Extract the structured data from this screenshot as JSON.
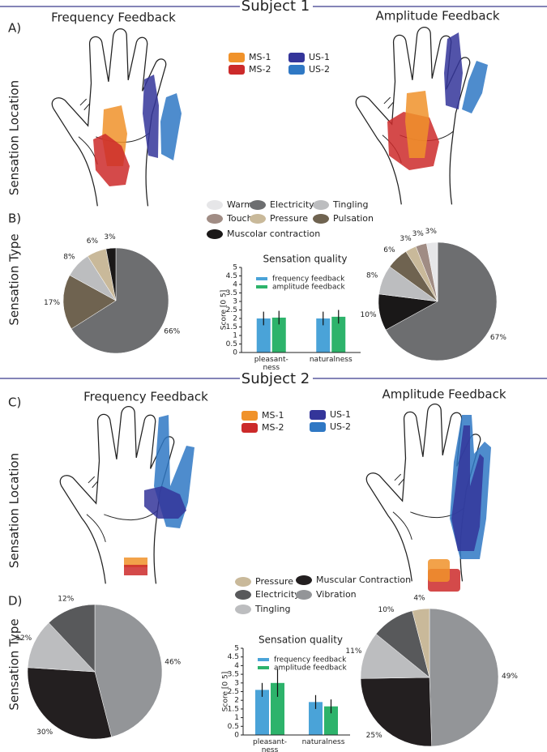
{
  "figure": {
    "subject1": {
      "title": "Subject 1",
      "panel_a": "A)",
      "panel_b": "B)",
      "row_a_label": "Sensation Location",
      "row_b_label": "Sensation Type",
      "hand_left": "Frequency Feedback",
      "hand_right": "Amplitude Feedback",
      "location_legend": [
        {
          "name": "MS-1",
          "color": "#f0922a"
        },
        {
          "name": "MS-2",
          "color": "#cc2a2a"
        },
        {
          "name": "US-1",
          "color": "#34359a"
        },
        {
          "name": "US-2",
          "color": "#2f78c4"
        }
      ],
      "type_legend": [
        {
          "name": "Warm",
          "color": "#e6e6e8"
        },
        {
          "name": "Electricity",
          "color": "#6d6e70"
        },
        {
          "name": "Tingling",
          "color": "#bcbdbf"
        },
        {
          "name": "Touch",
          "color": "#a08c84"
        },
        {
          "name": "Pressure",
          "color": "#c9b99a"
        },
        {
          "name": "Pulsation",
          "color": "#6f6350"
        },
        {
          "name": "Muscolar contraction",
          "color": "#1a1818"
        }
      ]
    },
    "subject2": {
      "title": "Subject 2",
      "panel_c": "C)",
      "panel_d": "D)",
      "row_c_label": "Sensation Location",
      "row_d_label": "Sensation Type",
      "hand_left": "Frequency Feedback",
      "hand_right": "Amplitude Feedback",
      "location_legend": [
        {
          "name": "MS-1",
          "color": "#f0922a"
        },
        {
          "name": "MS-2",
          "color": "#cc2a2a"
        },
        {
          "name": "US-1",
          "color": "#34359a"
        },
        {
          "name": "US-2",
          "color": "#2f78c4"
        }
      ],
      "type_legend": [
        {
          "name": "Pressure",
          "color": "#c9b99a"
        },
        {
          "name": "Muscular Contraction",
          "color": "#231f20"
        },
        {
          "name": "Electricity",
          "color": "#58595b"
        },
        {
          "name": "Vibration",
          "color": "#939598"
        },
        {
          "name": "Tingling",
          "color": "#bcbdbf"
        }
      ]
    }
  },
  "chart_data": [
    {
      "type": "pie",
      "values": [
        66,
        17,
        8,
        6,
        3
      ],
      "value_labels": [
        "66%",
        "17%",
        "8%",
        "6%",
        "3%"
      ],
      "colors": [
        "#6d6e70",
        "#6f6350",
        "#bcbdbf",
        "#c9b99a",
        "#1a1818"
      ]
    },
    {
      "type": "bar",
      "title": "Sensation quality",
      "y_label": "Score [0 5]",
      "categories": [
        [
          "pleasant-",
          "ness"
        ],
        [
          "naturalness"
        ]
      ],
      "series": [
        {
          "name": "frequency feedback",
          "color": "#4aa3d8",
          "values": [
            2.0,
            2.0
          ],
          "errors": [
            0.4,
            0.4
          ]
        },
        {
          "name": "amplitude feedback",
          "color": "#2db36b",
          "values": [
            2.05,
            2.1
          ],
          "errors": [
            0.4,
            0.4
          ]
        }
      ],
      "ylim": [
        0,
        5
      ],
      "yticks": [
        0,
        0.5,
        1,
        1.5,
        2,
        2.5,
        3,
        3.5,
        4,
        4.5,
        5
      ]
    },
    {
      "type": "pie",
      "values": [
        67,
        10,
        8,
        6,
        3,
        3,
        3
      ],
      "value_labels": [
        "67%",
        "10%",
        "8%",
        "6%",
        "3%",
        "3%",
        "3%"
      ],
      "colors": [
        "#6d6e70",
        "#1a1818",
        "#bcbdbf",
        "#6f6350",
        "#c9b99a",
        "#a08c84",
        "#e6e6e8"
      ]
    },
    {
      "type": "pie",
      "values": [
        46,
        30,
        12,
        12
      ],
      "value_labels": [
        "46%",
        "30%",
        "12%",
        "12%"
      ],
      "colors": [
        "#939598",
        "#231f20",
        "#bcbdbf",
        "#58595b"
      ]
    },
    {
      "type": "bar",
      "title": "Sensation quality",
      "y_label": "Score [0 5]",
      "categories": [
        [
          "pleasant-",
          "ness"
        ],
        [
          "naturalness"
        ]
      ],
      "series": [
        {
          "name": "frequency feedback",
          "color": "#4aa3d8",
          "values": [
            2.6,
            1.9
          ],
          "errors": [
            0.4,
            0.4
          ]
        },
        {
          "name": "amplitude feedback",
          "color": "#2db36b",
          "values": [
            3.0,
            1.65
          ],
          "errors": [
            0.8,
            0.4
          ]
        }
      ],
      "ylim": [
        0,
        5
      ],
      "yticks": [
        0,
        0.5,
        1,
        1.5,
        2,
        2.5,
        3,
        3.5,
        4,
        4.5,
        5
      ]
    },
    {
      "type": "pie",
      "values": [
        49,
        25,
        11,
        10,
        4
      ],
      "value_labels": [
        "49%",
        "25%",
        "11%",
        "10%",
        "4%"
      ],
      "colors": [
        "#939598",
        "#231f20",
        "#bcbdbf",
        "#58595b",
        "#c9b99a"
      ]
    }
  ]
}
